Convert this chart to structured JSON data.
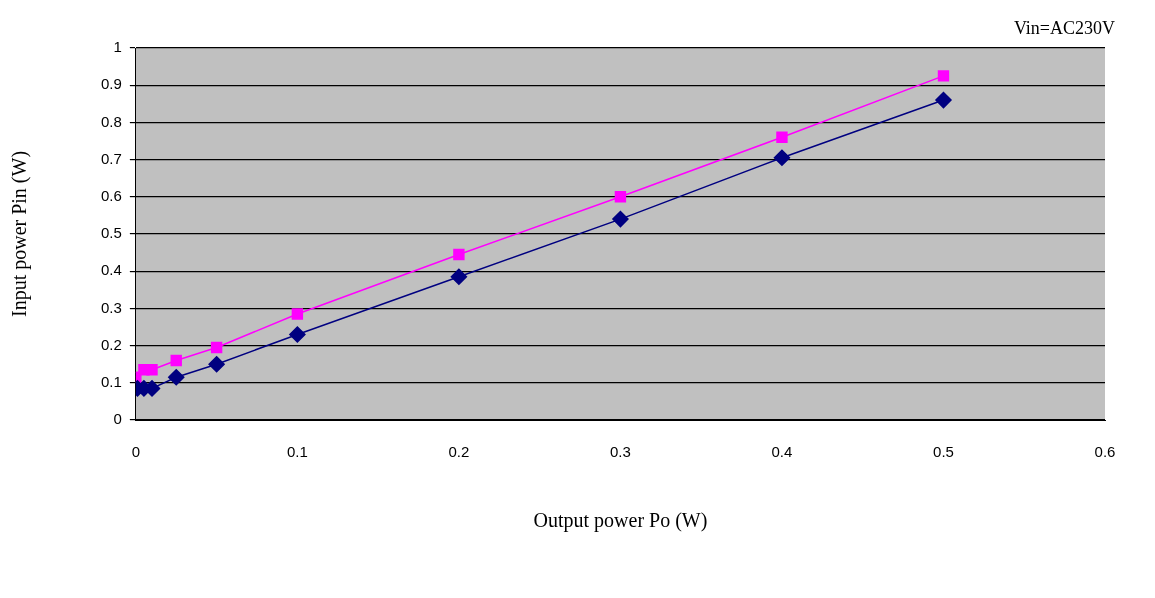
{
  "chart_data": {
    "type": "line",
    "xlabel": "Output power Po (W)",
    "ylabel": "Input power Pin (W)",
    "annotations": [
      "Vin=AC230V"
    ],
    "xlim": [
      0,
      0.6
    ],
    "xticks": [
      0,
      0.1,
      0.2,
      0.3,
      0.4,
      0.5,
      0.6
    ],
    "ylim": [
      0,
      1
    ],
    "yticks": [
      0,
      0.1,
      0.2,
      0.3,
      0.4,
      0.5,
      0.6,
      0.7,
      0.8,
      0.9,
      1
    ],
    "grid": "y",
    "legend": false,
    "series": [
      {
        "color": "#000080",
        "marker": "diamond",
        "x": [
          0.001,
          0.005,
          0.01,
          0.025,
          0.05,
          0.1,
          0.2,
          0.3,
          0.4,
          0.5
        ],
        "values": [
          0.085,
          0.085,
          0.085,
          0.115,
          0.15,
          0.23,
          0.385,
          0.54,
          0.705,
          0.86
        ]
      },
      {
        "color": "#ff00ff",
        "marker": "square",
        "x": [
          0,
          0.005,
          0.01,
          0.025,
          0.05,
          0.1,
          0.2,
          0.3,
          0.4,
          0.5
        ],
        "values": [
          0.115,
          0.135,
          0.135,
          0.16,
          0.195,
          0.285,
          0.445,
          0.6,
          0.76,
          0.925
        ]
      }
    ]
  }
}
